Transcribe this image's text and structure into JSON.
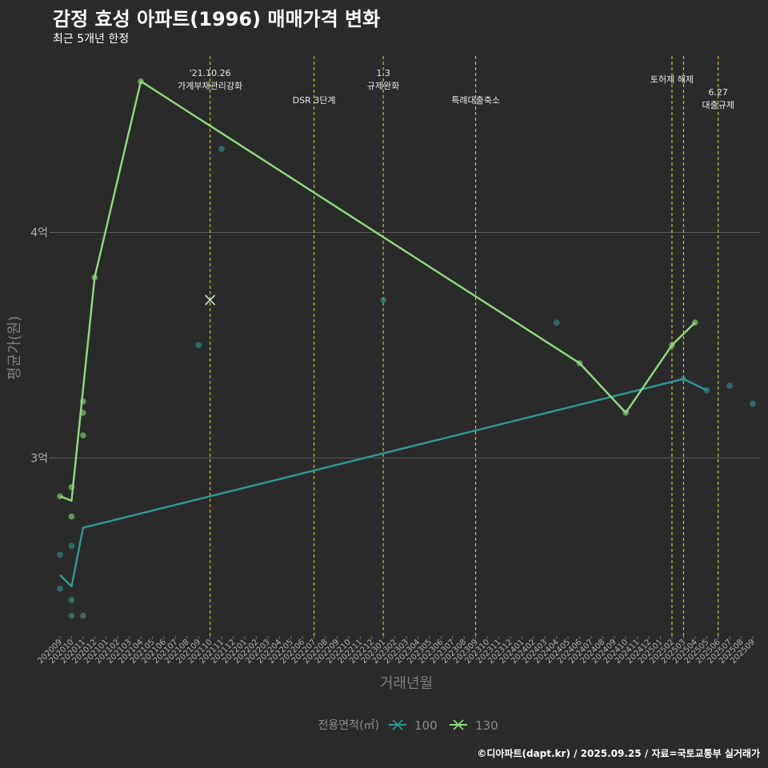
{
  "chart_data": {
    "type": "line",
    "title": "감정 효성 아파트(1996) 매매가격 변화",
    "subtitle": "최근 5개년 한정",
    "xlabel": "거래년월",
    "ylabel": "평균가(원)",
    "caption": "©디아파트(dapt.kr) / 2025.09.25 / 자료=국토교통부 실거래가",
    "legend_title": "전용면적(㎡)",
    "legend_position": "bottom",
    "y_ticks": [
      {
        "value": 3.0,
        "label": "3억"
      },
      {
        "value": 4.0,
        "label": "4억"
      }
    ],
    "ylim": [
      2.21,
      4.8
    ],
    "categories": [
      "202009",
      "202010",
      "202011",
      "202012",
      "202101",
      "202102",
      "202103",
      "202104",
      "202105",
      "202106",
      "202107",
      "202108",
      "202109",
      "202110",
      "202111",
      "202112",
      "202201",
      "202202",
      "202203",
      "202204",
      "202205",
      "202206",
      "202207",
      "202208",
      "202209",
      "202210",
      "202211",
      "202212",
      "202301",
      "202302",
      "202303",
      "202304",
      "202305",
      "202306",
      "202307",
      "202308",
      "202309",
      "202310",
      "202311",
      "202312",
      "202401",
      "202402",
      "202403",
      "202404",
      "202405",
      "202406",
      "202407",
      "202408",
      "202409",
      "202410",
      "202411",
      "202412",
      "202501",
      "202502",
      "202503",
      "202504",
      "202505",
      "202506",
      "202507",
      "202508",
      "202509"
    ],
    "series": [
      {
        "name": "100",
        "color": "#2f9a93",
        "line": [
          {
            "x": "202009",
            "y": 2.48
          },
          {
            "x": "202010",
            "y": 2.43
          },
          {
            "x": "202011",
            "y": 2.69
          },
          {
            "x": "202503",
            "y": 3.35
          },
          {
            "x": "202505",
            "y": 3.3
          }
        ],
        "points": [
          {
            "x": "202009",
            "y": 2.57
          },
          {
            "x": "202009",
            "y": 2.42
          },
          {
            "x": "202010",
            "y": 2.61
          },
          {
            "x": "202010",
            "y": 2.37
          },
          {
            "x": "202010",
            "y": 2.3
          },
          {
            "x": "202011",
            "y": 2.3
          },
          {
            "x": "202109",
            "y": 3.5
          },
          {
            "x": "202111",
            "y": 4.37
          },
          {
            "x": "202301",
            "y": 3.7
          },
          {
            "x": "202404",
            "y": 3.6
          },
          {
            "x": "202503",
            "y": 3.35
          },
          {
            "x": "202505",
            "y": 3.3
          },
          {
            "x": "202507",
            "y": 3.32
          },
          {
            "x": "202509",
            "y": 3.24
          }
        ]
      },
      {
        "name": "130",
        "color": "#8fdc7e",
        "line": [
          {
            "x": "202009",
            "y": 2.83
          },
          {
            "x": "202010",
            "y": 2.81
          },
          {
            "x": "202012",
            "y": 3.8
          },
          {
            "x": "202104",
            "y": 4.67
          },
          {
            "x": "202406",
            "y": 3.42
          },
          {
            "x": "202410",
            "y": 3.2
          },
          {
            "x": "202502",
            "y": 3.5
          },
          {
            "x": "202504",
            "y": 3.6
          }
        ],
        "points": [
          {
            "x": "202009",
            "y": 2.83
          },
          {
            "x": "202010",
            "y": 2.87
          },
          {
            "x": "202010",
            "y": 2.74
          },
          {
            "x": "202011",
            "y": 3.25
          },
          {
            "x": "202011",
            "y": 3.2
          },
          {
            "x": "202011",
            "y": 3.1
          },
          {
            "x": "202012",
            "y": 3.8
          },
          {
            "x": "202104",
            "y": 4.67
          },
          {
            "x": "202406",
            "y": 3.42
          },
          {
            "x": "202410",
            "y": 3.2
          },
          {
            "x": "202502",
            "y": 3.5
          },
          {
            "x": "202504",
            "y": 3.6
          }
        ]
      }
    ],
    "cross_marker": {
      "x": "202110",
      "y": 3.7
    },
    "events": [
      {
        "x": "202110",
        "lines": [
          "'21.10.26",
          "가계부채관리강화"
        ]
      },
      {
        "x": "202207",
        "lines": [
          "DSR 3단계"
        ]
      },
      {
        "x": "202301",
        "lines": [
          "1.3",
          "규제완화"
        ]
      },
      {
        "x": "202309",
        "lines": [
          "특례대출축소"
        ]
      },
      {
        "x": "202502",
        "lines": [
          "토허제 해제"
        ]
      },
      {
        "x": "202503",
        "lines": []
      },
      {
        "x": "202506",
        "lines": [
          "6.27",
          "대출규제"
        ]
      }
    ]
  }
}
